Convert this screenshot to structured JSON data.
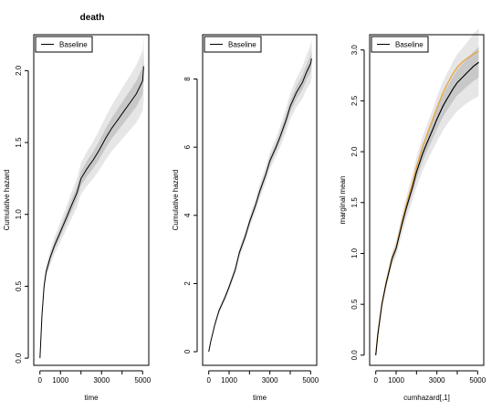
{
  "figure_title": "death",
  "colors": {
    "line": "#000000",
    "band_outer": "#e6e6e6",
    "band_inner": "#c8c8c8",
    "orange": "#e6a23c"
  },
  "chart_data": [
    {
      "type": "line",
      "title": "death",
      "xlabel": "time",
      "ylabel": "Cumulative hazard",
      "xlim": [
        -300,
        5300
      ],
      "ylim": [
        -0.05,
        2.25
      ],
      "x_ticks": [
        0,
        1000,
        2000,
        3000,
        4000,
        5000
      ],
      "x_tick_labels": [
        "0",
        "1000",
        "",
        "3000",
        "",
        "5000"
      ],
      "y_ticks": [
        0.0,
        0.5,
        1.0,
        1.5,
        2.0
      ],
      "y_tick_labels": [
        "0.0",
        "0.5",
        "1.0",
        "1.5",
        "2.0"
      ],
      "legend": {
        "position": "top-left",
        "entries": [
          "Baseline"
        ]
      },
      "series": [
        {
          "name": "Baseline",
          "x": [
            0,
            100,
            200,
            300,
            400,
            500,
            700,
            1000,
            1300,
            1500,
            1800,
            2000,
            2300,
            2600,
            2900,
            3200,
            3500,
            3800,
            4100,
            4400,
            4700,
            5000,
            5050
          ],
          "y": [
            0.0,
            0.3,
            0.5,
            0.6,
            0.65,
            0.7,
            0.78,
            0.88,
            0.98,
            1.05,
            1.15,
            1.25,
            1.32,
            1.38,
            1.45,
            1.53,
            1.6,
            1.66,
            1.72,
            1.78,
            1.84,
            1.93,
            2.03
          ],
          "lower": [
            0.0,
            0.27,
            0.46,
            0.56,
            0.6,
            0.65,
            0.72,
            0.81,
            0.9,
            0.96,
            1.05,
            1.14,
            1.2,
            1.25,
            1.31,
            1.38,
            1.44,
            1.49,
            1.54,
            1.59,
            1.64,
            1.72,
            1.8
          ],
          "upper": [
            0.0,
            0.33,
            0.54,
            0.64,
            0.7,
            0.75,
            0.84,
            0.95,
            1.06,
            1.14,
            1.25,
            1.36,
            1.44,
            1.51,
            1.59,
            1.68,
            1.76,
            1.83,
            1.9,
            1.97,
            2.04,
            2.14,
            2.25
          ]
        }
      ]
    },
    {
      "type": "line",
      "xlabel": "time",
      "ylabel": "Cumulative hazard",
      "xlim": [
        -300,
        5300
      ],
      "ylim": [
        -0.4,
        9.3
      ],
      "x_ticks": [
        0,
        1000,
        2000,
        3000,
        4000,
        5000
      ],
      "x_tick_labels": [
        "0",
        "1000",
        "",
        "3000",
        "",
        "5000"
      ],
      "y_ticks": [
        0,
        2,
        4,
        6,
        8
      ],
      "y_tick_labels": [
        "0",
        "2",
        "4",
        "6",
        "8"
      ],
      "legend": {
        "position": "top-left",
        "entries": [
          "Baseline"
        ]
      },
      "series": [
        {
          "name": "Baseline",
          "x": [
            0,
            100,
            300,
            500,
            800,
            1000,
            1300,
            1500,
            1800,
            2000,
            2300,
            2500,
            2800,
            3000,
            3300,
            3500,
            3800,
            4000,
            4300,
            4600,
            4800,
            5000,
            5050
          ],
          "y": [
            0.0,
            0.3,
            0.8,
            1.2,
            1.6,
            1.9,
            2.4,
            2.9,
            3.4,
            3.8,
            4.3,
            4.7,
            5.2,
            5.6,
            6.0,
            6.3,
            6.8,
            7.2,
            7.6,
            7.9,
            8.2,
            8.45,
            8.6
          ],
          "lower": [
            0.0,
            0.27,
            0.73,
            1.12,
            1.5,
            1.79,
            2.27,
            2.76,
            3.24,
            3.63,
            4.11,
            4.49,
            4.97,
            5.35,
            5.73,
            6.0,
            6.45,
            6.82,
            7.18,
            7.43,
            7.7,
            7.9,
            8.05
          ],
          "upper": [
            0.0,
            0.33,
            0.87,
            1.28,
            1.7,
            2.01,
            2.53,
            3.04,
            3.56,
            3.97,
            4.49,
            4.91,
            5.43,
            5.85,
            6.27,
            6.6,
            7.15,
            7.58,
            8.02,
            8.37,
            8.7,
            9.0,
            9.15
          ]
        }
      ]
    },
    {
      "type": "line",
      "xlabel": "cumhazard[,1]",
      "ylabel": "marginal mean",
      "xlim": [
        -300,
        5300
      ],
      "ylim": [
        -0.1,
        3.15
      ],
      "x_ticks": [
        0,
        1000,
        2000,
        3000,
        4000,
        5000
      ],
      "x_tick_labels": [
        "0",
        "1000",
        "",
        "3000",
        "",
        "5000"
      ],
      "y_ticks": [
        0.0,
        0.5,
        1.0,
        1.5,
        2.0,
        2.5,
        3.0
      ],
      "y_tick_labels": [
        "0.0",
        "0.5",
        "1.0",
        "1.5",
        "2.0",
        "2.5",
        "3.0"
      ],
      "legend": {
        "position": "top-left",
        "entries": [
          "Baseline"
        ]
      },
      "series": [
        {
          "name": "Baseline",
          "x": [
            0,
            100,
            300,
            500,
            800,
            1000,
            1300,
            1500,
            1800,
            2000,
            2300,
            2500,
            2800,
            3000,
            3300,
            3500,
            3800,
            4000,
            4300,
            4500,
            4800,
            5000,
            5050
          ],
          "y": [
            0.0,
            0.2,
            0.5,
            0.7,
            0.95,
            1.05,
            1.3,
            1.45,
            1.65,
            1.8,
            1.98,
            2.08,
            2.22,
            2.32,
            2.45,
            2.52,
            2.62,
            2.68,
            2.74,
            2.78,
            2.84,
            2.87,
            2.88
          ],
          "lower": [
            0.0,
            0.18,
            0.46,
            0.65,
            0.88,
            0.97,
            1.2,
            1.34,
            1.52,
            1.65,
            1.81,
            1.9,
            2.02,
            2.1,
            2.21,
            2.27,
            2.35,
            2.4,
            2.45,
            2.48,
            2.52,
            2.54,
            2.55
          ],
          "upper": [
            0.0,
            0.22,
            0.54,
            0.75,
            1.02,
            1.13,
            1.4,
            1.56,
            1.78,
            1.95,
            2.15,
            2.26,
            2.42,
            2.54,
            2.69,
            2.77,
            2.89,
            2.96,
            3.03,
            3.08,
            3.16,
            3.2,
            3.22
          ]
        },
        {
          "x": [
            0,
            100,
            300,
            500,
            800,
            1000,
            1300,
            1500,
            1800,
            2000,
            2300,
            2500,
            2800,
            3000,
            3300,
            3500,
            3800,
            4000,
            4300,
            4500,
            4800,
            5000,
            5050
          ],
          "y": [
            0.0,
            0.21,
            0.5,
            0.71,
            0.96,
            1.06,
            1.32,
            1.48,
            1.69,
            1.85,
            2.05,
            2.16,
            2.32,
            2.43,
            2.58,
            2.66,
            2.77,
            2.83,
            2.89,
            2.92,
            2.96,
            2.98,
            2.99
          ]
        }
      ]
    }
  ]
}
